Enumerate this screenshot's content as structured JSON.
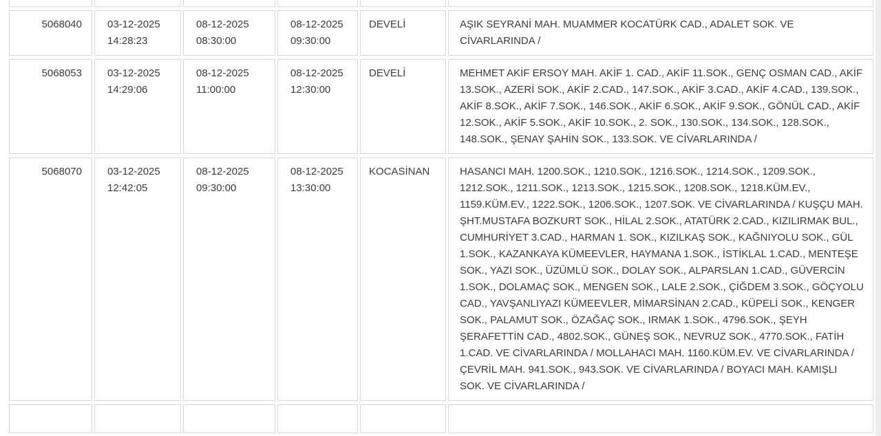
{
  "page": {
    "background": "#ffffff",
    "cell_border_color": "#d8d8d8",
    "text_color": "#3c3c3c",
    "scrollbar_color": "#ececec"
  },
  "table": {
    "rows": [
      {
        "id": "5068040",
        "recorded_at": "03-12-2025 14:28:23",
        "start_time": "08-12-2025 08:30:00",
        "end_time": "08-12-2025 09:30:00",
        "district": "DEVELİ",
        "areas": "AŞIK SEYRANİ MAH. MUAMMER KOCATÜRK CAD., ADALET SOK. VE CİVARLARINDA /"
      },
      {
        "id": "5068053",
        "recorded_at": "03-12-2025 14:29:06",
        "start_time": "08-12-2025 11:00:00",
        "end_time": "08-12-2025 12:30:00",
        "district": "DEVELİ",
        "areas": "MEHMET AKİF ERSOY MAH. AKİF 1. CAD., AKİF 11.SOK., GENÇ OSMAN CAD., AKİF 13.SOK., AZERİ SOK., AKİF 2.CAD., 147.SOK., AKİF 3.CAD., AKİF 4.CAD., 139.SOK., AKİF 8.SOK., AKİF 7.SOK., 146.SOK., AKİF 6.SOK., AKİF 9.SOK., GÖNÜL CAD., AKİF 12.SOK., AKİF 5.SOK., AKİF 10.SOK., 2. SOK., 130.SOK., 134.SOK., 128.SOK., 148.SOK., ŞENAY ŞAHİN SOK., 133.SOK. VE CİVARLARINDA /"
      },
      {
        "id": "5068070",
        "recorded_at": "03-12-2025 12:42:05",
        "start_time": "08-12-2025 09:30:00",
        "end_time": "08-12-2025 13:30:00",
        "district": "KOCASİNAN",
        "areas": "HASANCI MAH. 1200.SOK., 1210.SOK., 1216.SOK., 1214.SOK., 1209.SOK., 1212.SOK., 1211.SOK., 1213.SOK., 1215.SOK., 1208.SOK., 1218.KÜM.EV., 1159.KÜM.EV., 1222.SOK., 1206.SOK., 1207.SOK. VE CİVARLARINDA / KUŞÇU MAH. ŞHT.MUSTAFA BOZKURT SOK., HİLAL 2.SOK., ATATÜRK 2.CAD., KIZILIRMAK BUL., CUMHURİYET 3.CAD., HARMAN 1. SOK., KIZILKAŞ SOK., KAĞNIYOLU SOK., GÜL 1.SOK., KAZANKAYA KÜMEEVLER, HAYMANA 1.SOK., İSTİKLAL 1.CAD., MENTEŞE SOK., YAZI SOK., ÜZÜMLÜ SOK., DOLAY SOK., ALPARSLAN 1.CAD., GÜVERCİN 1.SOK., DOLAMAÇ SOK., MENGEN SOK., LALE 2.SOK., ÇİĞDEM 3.SOK., GÖÇYOLU CAD., YAVŞANLIYAZI KÜMEEVLER, MİMARSİNAN 2.CAD., KÜPELİ SOK., KENGER SOK., PALAMUT SOK., ÖZAĞAÇ SOK., IRMAK 1.SOK., 4796.SOK., ŞEYH ŞERAFETTİN CAD., 4802.SOK., GÜNEŞ SOK., NEVRUZ SOK., 4770.SOK., FATİH 1.CAD. VE CİVARLARINDA / MOLLAHACI MAH. 1160.KÜM.EV. VE CİVARLARINDA / ÇEVRİL MAH. 941.SOK., 943.SOK. VE CİVARLARINDA / BOYACI MAH. KAMIŞLI SOK. VE CİVARLARINDA /"
      }
    ]
  }
}
